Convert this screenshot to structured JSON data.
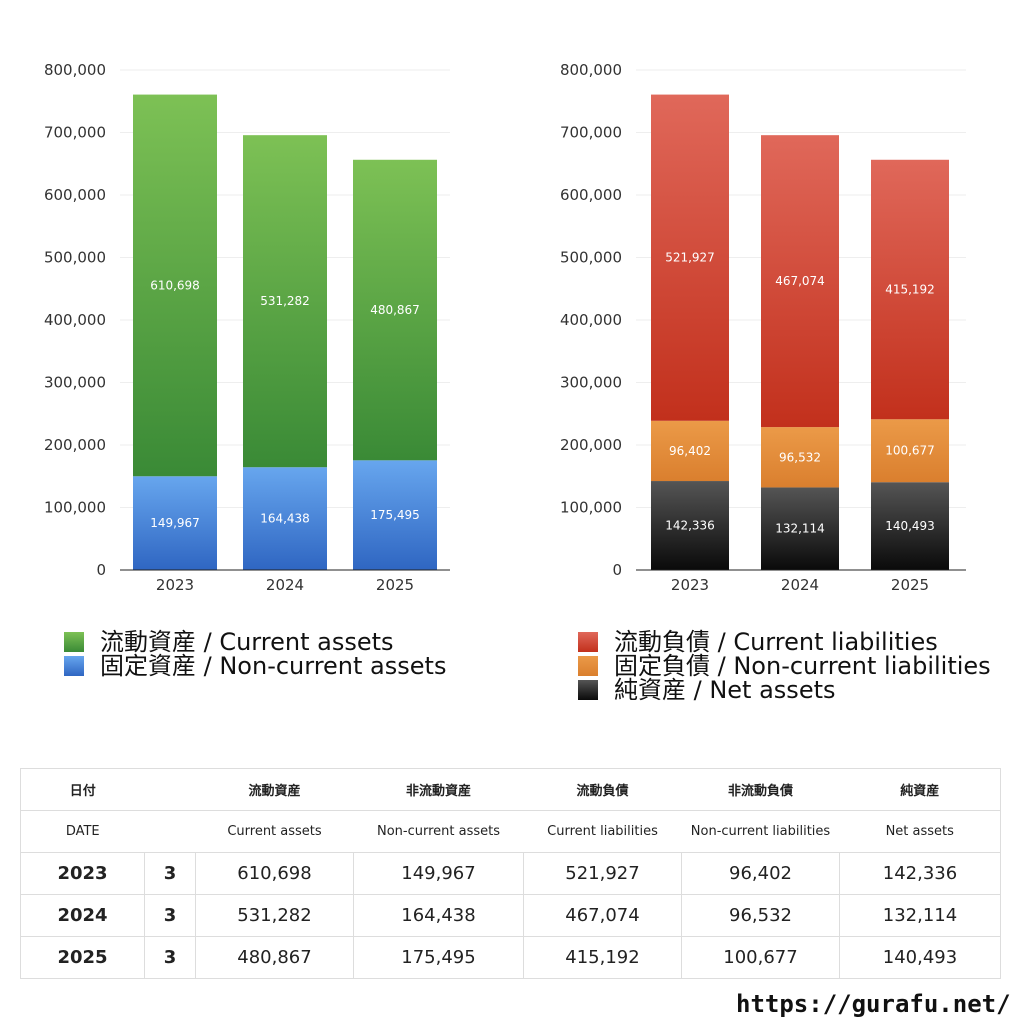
{
  "chart_data": [
    {
      "type": "bar",
      "stacked": true,
      "categories": [
        "2023",
        "2024",
        "2025"
      ],
      "ylim": [
        0,
        800000
      ],
      "yticks": [
        "0",
        "100,000",
        "200,000",
        "300,000",
        "400,000",
        "500,000",
        "600,000",
        "700,000",
        "800,000"
      ],
      "grid": true,
      "series": [
        {
          "name": "固定資産 / Non-current assets",
          "values": [
            149967,
            164438,
            175495
          ],
          "labels": [
            "149,967",
            "164,438",
            "175,495"
          ],
          "color": "#4a86e8"
        },
        {
          "name": "流動資産 / Current assets",
          "values": [
            610698,
            531282,
            480867
          ],
          "labels": [
            "610,698",
            "531,282",
            "480,867"
          ],
          "color": "#5aa84a"
        }
      ]
    },
    {
      "type": "bar",
      "stacked": true,
      "categories": [
        "2023",
        "2024",
        "2025"
      ],
      "ylim": [
        0,
        800000
      ],
      "yticks": [
        "0",
        "100,000",
        "200,000",
        "300,000",
        "400,000",
        "500,000",
        "600,000",
        "700,000",
        "800,000"
      ],
      "grid": true,
      "series": [
        {
          "name": "純資産 / Net assets",
          "values": [
            142336,
            132114,
            140493
          ],
          "labels": [
            "142,336",
            "132,114",
            "140,493"
          ],
          "color": "#333333"
        },
        {
          "name": "固定負債 / Non-current liabilities",
          "values": [
            96402,
            96532,
            100677
          ],
          "labels": [
            "96,402",
            "96,532",
            "100,677"
          ],
          "color": "#e8913a"
        },
        {
          "name": "流動負債 / Current liabilities",
          "values": [
            521927,
            467074,
            415192
          ],
          "labels": [
            "521,927",
            "467,074",
            "415,192"
          ],
          "color": "#d9503a"
        }
      ]
    }
  ],
  "legend_left": [
    {
      "label": "流動資産 / Current assets",
      "color": "#5aa84a"
    },
    {
      "label": "固定資産 / Non-current assets",
      "color": "#4a86e8"
    }
  ],
  "legend_right": [
    {
      "label": "流動負債 / Current liabilities",
      "color": "#d9503a"
    },
    {
      "label": "固定負債 / Non-current liabilities",
      "color": "#e8913a"
    },
    {
      "label": "純資産 / Net assets",
      "color": "#333333"
    }
  ],
  "table": {
    "header_jp": [
      "日付",
      "",
      "流動資産",
      "非流動資産",
      "流動負債",
      "非流動負債",
      "純資産"
    ],
    "header_en": [
      "DATE",
      "",
      "Current assets",
      "Non-current assets",
      "Current liabilities",
      "Non-current liabilities",
      "Net assets"
    ],
    "rows": [
      [
        "2023",
        "3",
        "610,698",
        "149,967",
        "521,927",
        "96,402",
        "142,336"
      ],
      [
        "2024",
        "3",
        "531,282",
        "164,438",
        "467,074",
        "96,532",
        "132,114"
      ],
      [
        "2025",
        "3",
        "480,867",
        "175,495",
        "415,192",
        "100,677",
        "140,493"
      ]
    ]
  },
  "site_url": "https://gurafu.net/"
}
